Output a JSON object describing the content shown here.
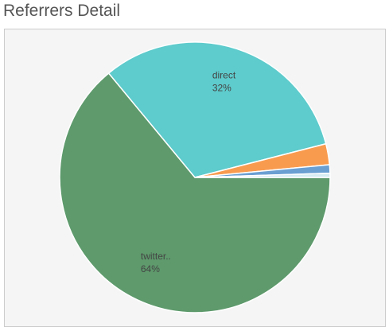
{
  "chart_data": {
    "type": "pie",
    "title": "Referrers Detail",
    "categories": [
      "twitter..",
      "direct",
      null,
      null,
      null
    ],
    "values": [
      64,
      32,
      2.5,
      1,
      0.5
    ],
    "value_labels": [
      "64%",
      "32%",
      null,
      null,
      null
    ],
    "colors": [
      "#5e9a6c",
      "#5ecbcc",
      "#f99b4f",
      "#6a9fd2",
      "#d6ecf3"
    ]
  }
}
